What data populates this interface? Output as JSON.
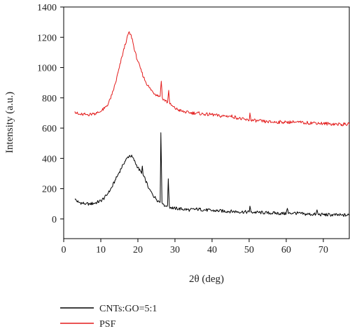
{
  "chart_data": {
    "type": "line",
    "xlabel": "2θ (deg)",
    "ylabel": "Intensity (a.u.)",
    "xlim": [
      0,
      77
    ],
    "ylim": [
      -130,
      1400
    ],
    "x_ticks": [
      0,
      10,
      20,
      30,
      40,
      50,
      60,
      70
    ],
    "y_ticks": [
      0,
      200,
      400,
      600,
      800,
      1000,
      1200,
      1400
    ],
    "grid": false,
    "legend_position": "bottom-left, below plot",
    "series": [
      {
        "name": "CNTs:GO=5:1",
        "color": "#000000",
        "x": [
          3,
          4,
          5,
          6,
          7,
          8,
          9,
          10,
          11,
          12,
          13,
          14,
          15,
          16,
          17,
          17.8,
          18.5,
          19,
          20,
          21,
          21.2,
          21.4,
          22,
          23,
          24,
          25,
          26,
          26.2,
          26.5,
          26.8,
          27,
          27.5,
          28,
          28.2,
          28.5,
          29,
          30,
          32,
          34,
          36,
          38,
          40,
          45,
          50,
          50.2,
          50.5,
          55,
          60,
          60.3,
          60.6,
          62,
          65,
          68,
          68.3,
          68.6,
          70,
          75,
          77
        ],
        "y": [
          130,
          110,
          105,
          100,
          100,
          102,
          110,
          120,
          140,
          170,
          210,
          260,
          310,
          360,
          400,
          420,
          410,
          385,
          340,
          300,
          350,
          290,
          260,
          200,
          160,
          130,
          110,
          570,
          110,
          100,
          95,
          85,
          90,
          265,
          80,
          75,
          70,
          65,
          60,
          65,
          60,
          55,
          50,
          45,
          85,
          45,
          40,
          35,
          70,
          35,
          40,
          32,
          30,
          60,
          30,
          28,
          25,
          25
        ]
      },
      {
        "name": "PSF",
        "color": "#e31b1b",
        "x": [
          3,
          4,
          5,
          6,
          7,
          8,
          9,
          10,
          11,
          12,
          13,
          14,
          15,
          16,
          17,
          17.5,
          18,
          18.5,
          19,
          20,
          21,
          22,
          23,
          24,
          25,
          26,
          26.3,
          26.6,
          27,
          28,
          28.3,
          28.6,
          29,
          30,
          32,
          34,
          36,
          38,
          40,
          42,
          45,
          48,
          50,
          50.2,
          50.5,
          52,
          55,
          60,
          62,
          65,
          68,
          70,
          75,
          77
        ],
        "y": [
          710,
          690,
          690,
          690,
          690,
          695,
          700,
          710,
          730,
          760,
          820,
          900,
          1000,
          1100,
          1190,
          1230,
          1220,
          1190,
          1120,
          1040,
          970,
          910,
          870,
          840,
          820,
          810,
          910,
          800,
          790,
          770,
          850,
          760,
          750,
          730,
          710,
          700,
          700,
          690,
          690,
          680,
          680,
          660,
          650,
          700,
          650,
          650,
          640,
          640,
          640,
          635,
          635,
          630,
          625,
          625
        ]
      }
    ]
  }
}
